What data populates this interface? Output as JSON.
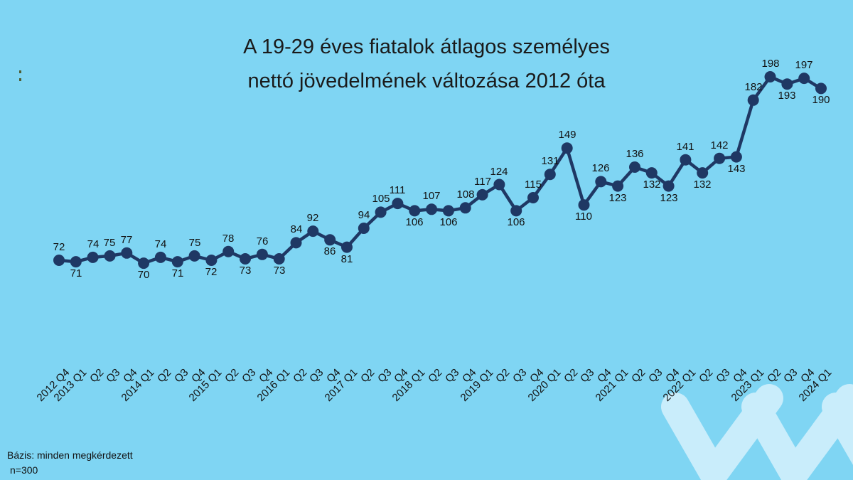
{
  "page": {
    "background_color": "#7fd5f3",
    "text_color": "#111111"
  },
  "title": {
    "line1": "A 19-29 éves fiatalok átlagos személyes",
    "line2": "nettó jövedelmének változása 2012 óta"
  },
  "footnote": {
    "line1": "Bázis: minden megkérdezett",
    "line2": "n=300"
  },
  "decor": {
    "chevron_color": "#c9edfb",
    "chevron_count": 3
  },
  "chart_data": {
    "type": "line",
    "title": "A 19-29 éves fiatalok átlagos személyes nettó jövedelmének változása 2012 óta",
    "xlabel": "",
    "ylabel": "",
    "grid": false,
    "legend": false,
    "series_color": "#1f3864",
    "marker": "circle",
    "ylim": [
      60,
      210
    ],
    "categories": [
      "2012 Q4",
      "2013 Q1",
      "Q2",
      "Q3",
      "Q4",
      "2014 Q1",
      "Q2",
      "Q3",
      "Q4",
      "2015 Q1",
      "Q2",
      "Q3",
      "Q4",
      "2016 Q1",
      "Q2",
      "Q3",
      "Q4",
      "2017 Q1",
      "Q2",
      "Q3",
      "Q4",
      "2018 Q1",
      "Q2",
      "Q3",
      "Q4",
      "2019 Q1",
      "Q2",
      "Q3",
      "Q4",
      "2020 Q1",
      "Q2",
      "Q3",
      "Q4",
      "2021 Q1",
      "Q2",
      "Q3",
      "Q4",
      "2022 Q1",
      "Q2",
      "Q3",
      "Q4",
      "2023 Q1",
      "Q2",
      "Q3",
      "Q4",
      "2024 Q1"
    ],
    "values": [
      72,
      71,
      74,
      75,
      77,
      70,
      74,
      71,
      75,
      72,
      78,
      73,
      76,
      73,
      84,
      92,
      86,
      81,
      94,
      105,
      111,
      106,
      107,
      106,
      108,
      117,
      124,
      106,
      115,
      131,
      149,
      110,
      126,
      123,
      136,
      132,
      123,
      141,
      132,
      142,
      143,
      182,
      198,
      193,
      197,
      190
    ],
    "label_positions": [
      "above",
      "below",
      "above",
      "above",
      "above",
      "below",
      "above",
      "below",
      "above",
      "below",
      "above",
      "below",
      "above",
      "below",
      "above",
      "above",
      "below",
      "below",
      "above",
      "above",
      "above",
      "below",
      "above",
      "below",
      "above",
      "above",
      "above",
      "below",
      "above",
      "above",
      "above",
      "below",
      "above",
      "below",
      "above",
      "below",
      "below",
      "above",
      "below",
      "above",
      "below",
      "above",
      "above",
      "below",
      "above",
      "below"
    ]
  }
}
